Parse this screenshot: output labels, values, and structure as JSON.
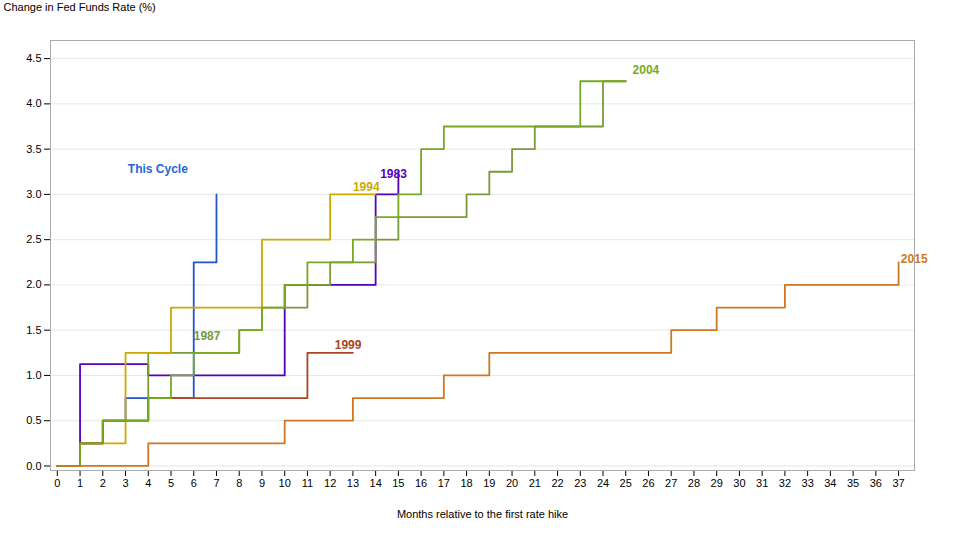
{
  "chart_data": {
    "type": "step",
    "ylabel": "Change in Fed Funds Rate (%)",
    "xlabel": "Months relative to the first rate hike",
    "grid": "y",
    "xlim": [
      -0.3,
      37.7
    ],
    "ylim": [
      -0.05,
      4.7
    ],
    "xticks": [
      0,
      1,
      2,
      3,
      4,
      5,
      6,
      7,
      8,
      9,
      10,
      11,
      12,
      13,
      14,
      15,
      16,
      17,
      18,
      19,
      20,
      21,
      22,
      23,
      24,
      25,
      26,
      27,
      28,
      29,
      30,
      31,
      32,
      33,
      34,
      35,
      36,
      37
    ],
    "yticks": [
      {
        "value": 0.0,
        "label": "0.0"
      },
      0.5,
      {
        "value": 1.0,
        "label": "1.0"
      },
      1.5,
      {
        "value": 2.0,
        "label": "2.0"
      },
      2.5,
      {
        "value": 3.0,
        "label": "3.0"
      },
      3.5,
      {
        "value": 4.0,
        "label": "4.0"
      },
      4.5
    ],
    "series": [
      {
        "name": "This Cycle",
        "color": "#2255cc",
        "x": [
          0,
          1,
          2,
          3,
          4,
          5,
          6,
          7
        ],
        "values": [
          0,
          0.25,
          0.5,
          0.75,
          0.75,
          0.75,
          2.25,
          3.0
        ]
      },
      {
        "name": "1983",
        "color": "#5500bb",
        "x": [
          0,
          1,
          2,
          3,
          4,
          5,
          6,
          7,
          8,
          9,
          10,
          11,
          12,
          13,
          14,
          15
        ],
        "values": [
          0,
          1.125,
          1.125,
          1.125,
          1.0,
          1.0,
          1.0,
          1.0,
          1.0,
          1.0,
          2.0,
          2.0,
          2.0,
          2.0,
          3.0,
          3.25
        ]
      },
      {
        "name": "1987",
        "color": "#7b9a3a",
        "x": [
          0,
          1,
          2,
          3,
          4,
          5,
          6,
          7,
          8,
          9,
          10,
          11,
          12,
          13,
          14,
          15,
          16,
          17,
          18,
          19,
          20,
          21,
          22,
          23,
          24,
          25
        ],
        "values": [
          0,
          0.25,
          0.5,
          0.5,
          1.25,
          1.25,
          1.25,
          1.25,
          1.5,
          1.75,
          1.75,
          2.0,
          2.25,
          2.25,
          2.5,
          2.75,
          2.75,
          2.75,
          3.0,
          3.25,
          3.5,
          3.75,
          3.75,
          3.75,
          4.25,
          4.25
        ]
      },
      {
        "name": "1994",
        "color": "#ccaa00",
        "x": [
          0,
          1,
          2,
          3,
          4,
          5,
          6,
          7,
          8,
          9,
          10,
          11,
          12,
          13,
          14
        ],
        "values": [
          0,
          0.25,
          0.25,
          1.25,
          1.25,
          1.75,
          1.75,
          1.75,
          1.75,
          2.5,
          2.5,
          2.5,
          3.0,
          3.0,
          3.0
        ]
      },
      {
        "name": "1999",
        "color": "#aa4422",
        "x": [
          0,
          1,
          2,
          3,
          4,
          5,
          6,
          7,
          8,
          9,
          10,
          11,
          12,
          13
        ],
        "values": [
          0,
          0.25,
          0.5,
          0.5,
          0.75,
          0.75,
          0.75,
          0.75,
          0.75,
          0.75,
          0.75,
          1.25,
          1.25,
          1.25
        ]
      },
      {
        "name": "2004",
        "color": "#77aa22",
        "x": [
          0,
          1,
          2,
          3,
          4,
          5,
          6,
          7,
          8,
          9,
          10,
          11,
          12,
          13,
          14,
          15,
          16,
          17,
          18,
          19,
          20,
          21,
          22,
          23,
          24,
          25
        ],
        "values": [
          0,
          0.25,
          0.5,
          0.5,
          0.75,
          1.0,
          1.25,
          1.25,
          1.5,
          1.75,
          2.0,
          2.25,
          2.25,
          2.5,
          2.75,
          3.0,
          3.5,
          3.75,
          3.75,
          3.75,
          3.75,
          3.75,
          3.75,
          4.25,
          4.25,
          4.25
        ]
      },
      {
        "name": "2015",
        "color": "#cc7722",
        "x": [
          0,
          1,
          2,
          3,
          4,
          5,
          6,
          7,
          8,
          9,
          10,
          11,
          12,
          13,
          14,
          15,
          16,
          17,
          18,
          19,
          20,
          21,
          22,
          23,
          24,
          25,
          26,
          27,
          28,
          29,
          30,
          31,
          32,
          33,
          34,
          35,
          36,
          37
        ],
        "values": [
          0,
          0.0,
          0.0,
          0.0,
          0.25,
          0.25,
          0.25,
          0.25,
          0.25,
          0.25,
          0.5,
          0.5,
          0.5,
          0.75,
          0.75,
          0.75,
          0.75,
          1.0,
          1.0,
          1.25,
          1.25,
          1.25,
          1.25,
          1.25,
          1.25,
          1.25,
          1.25,
          1.5,
          1.5,
          1.75,
          1.75,
          1.75,
          2.0,
          2.0,
          2.0,
          2.0,
          2.0,
          2.25
        ]
      }
    ],
    "annotations": [
      {
        "text": "This Cycle",
        "x": 3.1,
        "y": 3.28,
        "color": "#2266dd"
      },
      {
        "text": "1983",
        "x": 14.2,
        "y": 3.22,
        "color": "#5500bb"
      },
      {
        "text": "1987",
        "x": 6.0,
        "y": 1.43,
        "color": "#7b9a3a"
      },
      {
        "text": "1994",
        "x": 13.0,
        "y": 3.08,
        "color": "#ccaa00"
      },
      {
        "text": "1999",
        "x": 12.2,
        "y": 1.33,
        "color": "#aa4422"
      },
      {
        "text": "2004",
        "x": 25.3,
        "y": 4.37,
        "color": "#77aa22"
      },
      {
        "text": "2015",
        "x": 37.1,
        "y": 2.28,
        "color": "#cc7722"
      }
    ]
  }
}
